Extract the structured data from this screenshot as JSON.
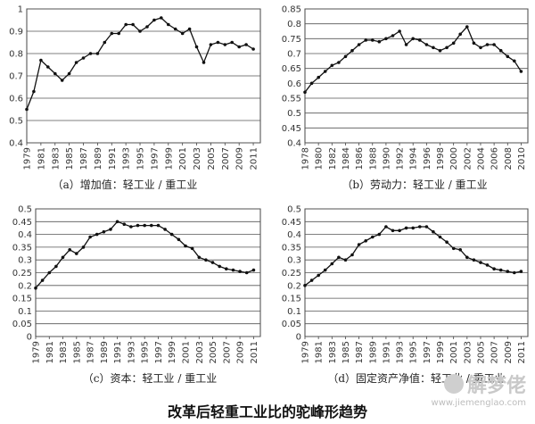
{
  "main_title": "改革后轻重工业比的驼峰形趋势",
  "watermark": {
    "text": "解梦佬",
    "url": "www.jiemenglao.com"
  },
  "chart_data": [
    {
      "type": "line",
      "caption": "（a）增加值：轻工业 / 重工业",
      "ylim": [
        0.4,
        1.0
      ],
      "yticks": [
        "0.4",
        "0.5",
        "0.6",
        "0.7",
        "0.8",
        "0.9",
        "1"
      ],
      "xlim": [
        1979,
        2012
      ],
      "xticks": [
        "1979",
        "1981",
        "1983",
        "1985",
        "1987",
        "1989",
        "1991",
        "1993",
        "1995",
        "1997",
        "1999",
        "2001",
        "2003",
        "2005",
        "2007",
        "2009",
        "2011"
      ],
      "grid": "horizontal",
      "x": [
        1979,
        1980,
        1981,
        1982,
        1983,
        1984,
        1985,
        1986,
        1987,
        1988,
        1989,
        1990,
        1991,
        1992,
        1993,
        1994,
        1995,
        1996,
        1997,
        1998,
        1999,
        2000,
        2001,
        2002,
        2003,
        2004,
        2005,
        2006,
        2007,
        2008,
        2009,
        2010,
        2011
      ],
      "values": [
        0.55,
        0.63,
        0.77,
        0.74,
        0.71,
        0.68,
        0.71,
        0.76,
        0.78,
        0.8,
        0.8,
        0.85,
        0.89,
        0.89,
        0.93,
        0.93,
        0.9,
        0.92,
        0.95,
        0.96,
        0.93,
        0.91,
        0.89,
        0.91,
        0.83,
        0.76,
        0.84,
        0.85,
        0.84,
        0.85,
        0.83,
        0.84,
        0.82
      ]
    },
    {
      "type": "line",
      "caption": "（b）劳动力：轻工业 / 重工业",
      "ylim": [
        0.4,
        0.85
      ],
      "yticks": [
        "0.4",
        "0.45",
        "0.5",
        "0.55",
        "0.6",
        "0.65",
        "0.7",
        "0.75",
        "0.8",
        "0.85"
      ],
      "xlim": [
        1978,
        2011
      ],
      "xticks": [
        "1978",
        "1980",
        "1982",
        "1984",
        "1986",
        "1988",
        "1990",
        "1992",
        "1994",
        "1996",
        "1998",
        "2000",
        "2002",
        "2004",
        "2006",
        "2008",
        "2010"
      ],
      "grid": "horizontal",
      "x": [
        1978,
        1979,
        1980,
        1981,
        1982,
        1983,
        1984,
        1985,
        1986,
        1987,
        1988,
        1989,
        1990,
        1991,
        1992,
        1993,
        1994,
        1995,
        1996,
        1997,
        1998,
        1999,
        2000,
        2001,
        2002,
        2003,
        2004,
        2005,
        2006,
        2007,
        2008,
        2009,
        2010
      ],
      "values": [
        0.57,
        0.6,
        0.62,
        0.64,
        0.66,
        0.67,
        0.69,
        0.71,
        0.73,
        0.745,
        0.745,
        0.74,
        0.75,
        0.76,
        0.775,
        0.73,
        0.75,
        0.745,
        0.73,
        0.72,
        0.71,
        0.72,
        0.735,
        0.765,
        0.79,
        0.735,
        0.72,
        0.73,
        0.73,
        0.71,
        0.69,
        0.675,
        0.64
      ]
    },
    {
      "type": "line",
      "caption": "（c）资本：轻工业 / 重工业",
      "ylim": [
        0,
        0.5
      ],
      "yticks": [
        "0",
        "0.05",
        "0.1",
        "0.15",
        "0.2",
        "0.25",
        "0.3",
        "0.35",
        "0.4",
        "0.45",
        "0.5"
      ],
      "xlim": [
        1979,
        2012
      ],
      "xticks": [
        "1979",
        "1981",
        "1983",
        "1985",
        "1987",
        "1989",
        "1991",
        "1993",
        "1995",
        "1997",
        "1999",
        "2001",
        "2003",
        "2005",
        "2007",
        "2009",
        "2011"
      ],
      "grid": "horizontal",
      "x": [
        1979,
        1980,
        1981,
        1982,
        1983,
        1984,
        1985,
        1986,
        1987,
        1988,
        1989,
        1990,
        1991,
        1992,
        1993,
        1994,
        1995,
        1996,
        1997,
        1998,
        1999,
        2000,
        2001,
        2002,
        2003,
        2004,
        2005,
        2006,
        2007,
        2008,
        2009,
        2010,
        2011
      ],
      "values": [
        0.19,
        0.22,
        0.25,
        0.275,
        0.31,
        0.34,
        0.325,
        0.35,
        0.39,
        0.4,
        0.41,
        0.42,
        0.45,
        0.44,
        0.43,
        0.435,
        0.435,
        0.435,
        0.435,
        0.42,
        0.4,
        0.38,
        0.355,
        0.345,
        0.31,
        0.3,
        0.29,
        0.275,
        0.265,
        0.26,
        0.255,
        0.25,
        0.26
      ]
    },
    {
      "type": "line",
      "caption": "（d）固定资产净值：轻工业 / 重工业",
      "ylim": [
        0,
        0.5
      ],
      "yticks": [
        "0",
        "0.05",
        "0.1",
        "0.15",
        "0.2",
        "0.25",
        "0.3",
        "0.35",
        "0.4",
        "0.45",
        "0.5"
      ],
      "xlim": [
        1979,
        2012
      ],
      "xticks": [
        "1979",
        "1981",
        "1983",
        "1985",
        "1987",
        "1989",
        "1991",
        "1993",
        "1995",
        "1997",
        "1999",
        "2001",
        "2003",
        "2005",
        "2007",
        "2009",
        "2011"
      ],
      "grid": "horizontal",
      "x": [
        1979,
        1980,
        1981,
        1982,
        1983,
        1984,
        1985,
        1986,
        1987,
        1988,
        1989,
        1990,
        1991,
        1992,
        1993,
        1994,
        1995,
        1996,
        1997,
        1998,
        1999,
        2000,
        2001,
        2002,
        2003,
        2004,
        2005,
        2006,
        2007,
        2008,
        2009,
        2010,
        2011
      ],
      "values": [
        0.2,
        0.22,
        0.24,
        0.26,
        0.285,
        0.31,
        0.3,
        0.32,
        0.36,
        0.375,
        0.39,
        0.4,
        0.43,
        0.415,
        0.415,
        0.425,
        0.425,
        0.43,
        0.43,
        0.41,
        0.39,
        0.37,
        0.345,
        0.34,
        0.31,
        0.3,
        0.29,
        0.28,
        0.265,
        0.26,
        0.255,
        0.25,
        0.255
      ]
    }
  ]
}
